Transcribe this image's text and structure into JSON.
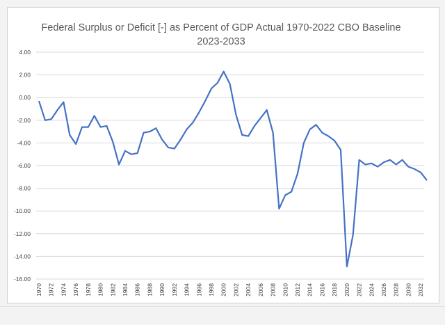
{
  "chart_data": {
    "type": "line",
    "title_lines": [
      "Federal Surplus or Deficit [-] as Percent of GDP Actual 1970-2022 CBO Baseline",
      "2023-2033"
    ],
    "xlabel": "",
    "ylabel": "",
    "ylim": [
      -16,
      4
    ],
    "yticks": [
      4,
      2,
      0,
      -2,
      -4,
      -6,
      -8,
      -10,
      -12,
      -14,
      -16
    ],
    "ytick_labels": [
      "4.00",
      "2.00",
      "0.00",
      "-2.00",
      "-4.00",
      "-6.00",
      "-8.00",
      "-10.00",
      "-12.00",
      "-14.00",
      "-16.00"
    ],
    "xlim": [
      1970,
      2033
    ],
    "xtick_labels": [
      "1970",
      "1972",
      "1974",
      "1976",
      "1978",
      "1980",
      "1982",
      "1984",
      "1986",
      "1988",
      "1990",
      "1992",
      "1994",
      "1996",
      "1998",
      "2000",
      "2002",
      "2004",
      "2006",
      "2008",
      "2010",
      "2012",
      "2014",
      "2016",
      "2018",
      "2020",
      "2022",
      "2024",
      "2026",
      "2028",
      "2030",
      "2032"
    ],
    "grid": "horizontal",
    "line_color": "#4472C4",
    "series": [
      {
        "x": [
          1970,
          1971,
          1972,
          1973,
          1974,
          1975,
          1976,
          1977,
          1978,
          1979,
          1980,
          1981,
          1982,
          1983,
          1984,
          1985,
          1986,
          1987,
          1988,
          1989,
          1990,
          1991,
          1992,
          1993,
          1994,
          1995,
          1996,
          1997,
          1998,
          1999,
          2000,
          2001,
          2002,
          2003,
          2004,
          2005,
          2006,
          2007,
          2008,
          2009,
          2010,
          2011,
          2012,
          2013,
          2014,
          2015,
          2016,
          2017,
          2018,
          2019,
          2020,
          2021,
          2022,
          2023,
          2024,
          2025,
          2026,
          2027,
          2028,
          2029,
          2030,
          2031,
          2032,
          2033
        ],
        "values": [
          -0.3,
          -2.0,
          -1.9,
          -1.1,
          -0.4,
          -3.3,
          -4.1,
          -2.6,
          -2.6,
          -1.6,
          -2.6,
          -2.5,
          -3.9,
          -5.9,
          -4.7,
          -5.0,
          -4.9,
          -3.1,
          -3.0,
          -2.7,
          -3.7,
          -4.4,
          -4.5,
          -3.7,
          -2.8,
          -2.2,
          -1.3,
          -0.3,
          0.8,
          1.3,
          2.3,
          1.2,
          -1.5,
          -3.3,
          -3.4,
          -2.5,
          -1.8,
          -1.1,
          -3.1,
          -9.8,
          -8.6,
          -8.3,
          -6.7,
          -4.0,
          -2.8,
          -2.4,
          -3.1,
          -3.4,
          -3.8,
          -4.6,
          -14.9,
          -12.1,
          -5.5,
          -5.9,
          -5.8,
          -6.1,
          -5.7,
          -5.5,
          -5.9,
          -5.5,
          -6.1,
          -6.3,
          -6.6,
          -7.3
        ]
      }
    ]
  }
}
